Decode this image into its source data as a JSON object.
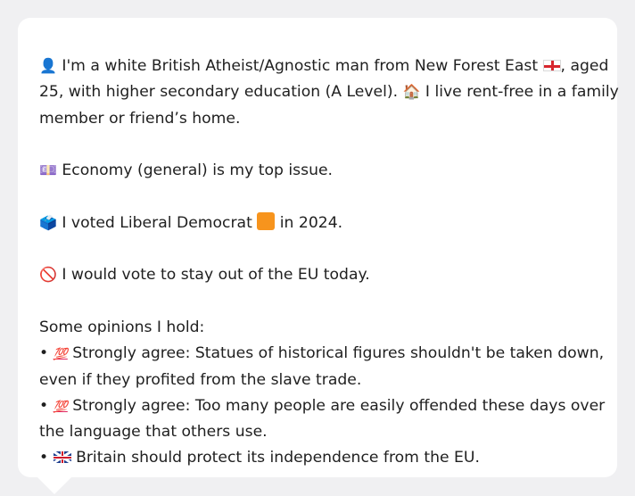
{
  "intro": {
    "person_icon": "👤",
    "line1_prefix": "I'm a white British Atheist/Agnostic man from New Forest East",
    "england_flag_icon": "england-flag",
    "line1_suffix": ", aged",
    "line2_prefix": "25, with higher secondary education (A Level).",
    "house_icon": "🏠",
    "line2_suffix": "I live rent-free in a family",
    "line3": "member or friend’s home."
  },
  "issue": {
    "icon": "💷",
    "text": "Economy (general) is my top issue."
  },
  "vote": {
    "icon": "🗳️",
    "prefix": "I voted Liberal Democrat",
    "party_color_icon": "orange-square",
    "party_color": "#f7941d",
    "suffix": "in 2024."
  },
  "eu": {
    "icon": "🚫",
    "text": "I would vote to stay out of the EU today."
  },
  "opinions": {
    "heading": "Some opinions I hold:",
    "bullet": "•",
    "items": [
      {
        "icon": "💯",
        "line1": "Strongly agree: Statues of historical figures shouldn't be taken down,",
        "line2": "even if they profited from the slave trade."
      },
      {
        "icon": "💯",
        "line1": "Strongly agree: Too many people are easily offended these days over",
        "line2": "the language that others use."
      },
      {
        "icon": "uk-flag",
        "line1": "Britain should protect its independence from the EU."
      }
    ]
  }
}
